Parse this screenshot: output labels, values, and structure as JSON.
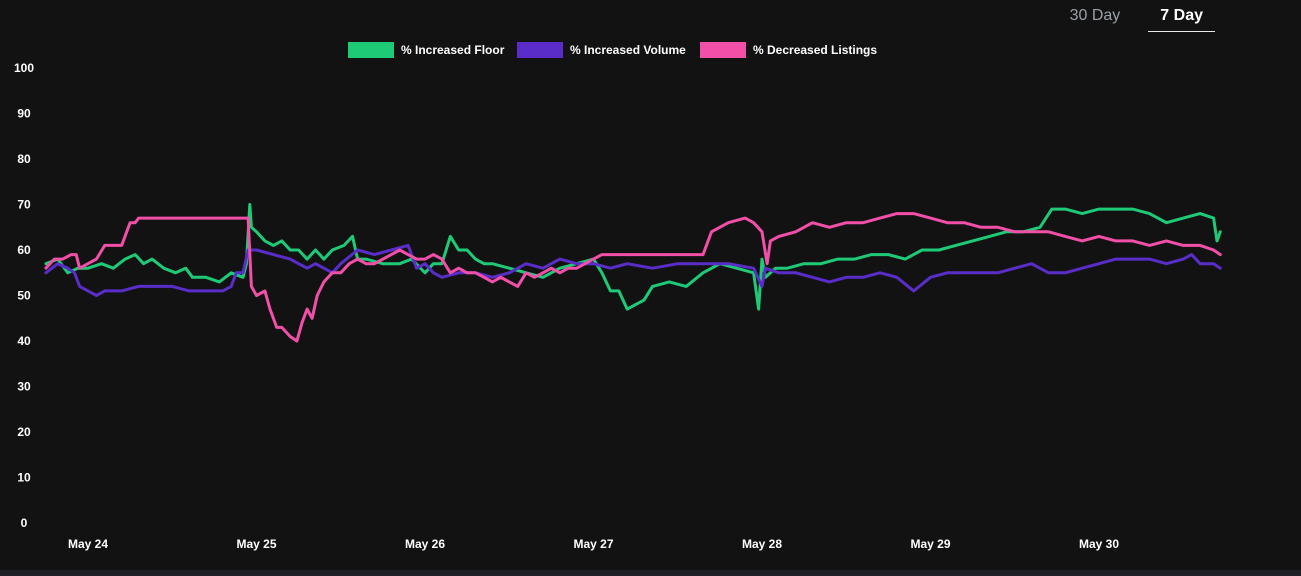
{
  "range_tabs": [
    {
      "label": "30 Day",
      "active": false
    },
    {
      "label": "7 Day",
      "active": true
    }
  ],
  "chart_data": {
    "type": "line",
    "title": "",
    "xlabel": "",
    "ylabel": "",
    "ylim": [
      0,
      100
    ],
    "yticks": [
      0,
      10,
      20,
      30,
      40,
      50,
      60,
      70,
      80,
      90,
      100
    ],
    "xlim": [
      0,
      6.75
    ],
    "xticks": [
      {
        "x": 0,
        "label": "May 24"
      },
      {
        "x": 1,
        "label": "May 25"
      },
      {
        "x": 2,
        "label": "May 26"
      },
      {
        "x": 3,
        "label": "May 27"
      },
      {
        "x": 4,
        "label": "May 28"
      },
      {
        "x": 5,
        "label": "May 29"
      },
      {
        "x": 6,
        "label": "May 30"
      }
    ],
    "grid": false,
    "legend_position": "top-center",
    "series": [
      {
        "name": "% Increased Floor",
        "color": "#1fca77",
        "points": [
          [
            -0.25,
            57
          ],
          [
            -0.18,
            58
          ],
          [
            -0.12,
            55
          ],
          [
            -0.06,
            56
          ],
          [
            0.0,
            56
          ],
          [
            0.08,
            57
          ],
          [
            0.15,
            56
          ],
          [
            0.22,
            58
          ],
          [
            0.28,
            59
          ],
          [
            0.33,
            57
          ],
          [
            0.38,
            58
          ],
          [
            0.45,
            56
          ],
          [
            0.52,
            55
          ],
          [
            0.58,
            56
          ],
          [
            0.62,
            54
          ],
          [
            0.7,
            54
          ],
          [
            0.78,
            53
          ],
          [
            0.85,
            55
          ],
          [
            0.92,
            54
          ],
          [
            0.94,
            57
          ],
          [
            0.96,
            70
          ],
          [
            0.97,
            65
          ],
          [
            1.0,
            64
          ],
          [
            1.05,
            62
          ],
          [
            1.1,
            61
          ],
          [
            1.15,
            62
          ],
          [
            1.2,
            60
          ],
          [
            1.25,
            60
          ],
          [
            1.3,
            58
          ],
          [
            1.35,
            60
          ],
          [
            1.4,
            58
          ],
          [
            1.45,
            60
          ],
          [
            1.52,
            61
          ],
          [
            1.57,
            63
          ],
          [
            1.6,
            58
          ],
          [
            1.65,
            58
          ],
          [
            1.75,
            57
          ],
          [
            1.85,
            57
          ],
          [
            1.92,
            58
          ],
          [
            2.0,
            55
          ],
          [
            2.05,
            57
          ],
          [
            2.1,
            57
          ],
          [
            2.15,
            63
          ],
          [
            2.2,
            60
          ],
          [
            2.25,
            60
          ],
          [
            2.3,
            58
          ],
          [
            2.35,
            57
          ],
          [
            2.4,
            57
          ],
          [
            2.5,
            56
          ],
          [
            2.6,
            55
          ],
          [
            2.7,
            54
          ],
          [
            2.8,
            56
          ],
          [
            2.9,
            57
          ],
          [
            3.0,
            58
          ],
          [
            3.05,
            55
          ],
          [
            3.1,
            51
          ],
          [
            3.15,
            51
          ],
          [
            3.2,
            47
          ],
          [
            3.3,
            49
          ],
          [
            3.35,
            52
          ],
          [
            3.45,
            53
          ],
          [
            3.55,
            52
          ],
          [
            3.65,
            55
          ],
          [
            3.75,
            57
          ],
          [
            3.85,
            56
          ],
          [
            3.95,
            55
          ],
          [
            3.98,
            47
          ],
          [
            4.0,
            58
          ],
          [
            4.02,
            54
          ],
          [
            4.08,
            56
          ],
          [
            4.15,
            56
          ],
          [
            4.25,
            57
          ],
          [
            4.35,
            57
          ],
          [
            4.45,
            58
          ],
          [
            4.55,
            58
          ],
          [
            4.65,
            59
          ],
          [
            4.75,
            59
          ],
          [
            4.85,
            58
          ],
          [
            4.95,
            60
          ],
          [
            5.05,
            60
          ],
          [
            5.15,
            61
          ],
          [
            5.25,
            62
          ],
          [
            5.35,
            63
          ],
          [
            5.45,
            64
          ],
          [
            5.55,
            64
          ],
          [
            5.65,
            65
          ],
          [
            5.72,
            69
          ],
          [
            5.8,
            69
          ],
          [
            5.9,
            68
          ],
          [
            6.0,
            69
          ],
          [
            6.1,
            69
          ],
          [
            6.2,
            69
          ],
          [
            6.3,
            68
          ],
          [
            6.4,
            66
          ],
          [
            6.5,
            67
          ],
          [
            6.6,
            68
          ],
          [
            6.68,
            67
          ],
          [
            6.7,
            62
          ],
          [
            6.72,
            64
          ]
        ]
      },
      {
        "name": "% Increased Volume",
        "color": "#5a2dc9",
        "points": [
          [
            -0.25,
            55
          ],
          [
            -0.18,
            57
          ],
          [
            -0.12,
            56
          ],
          [
            -0.08,
            55
          ],
          [
            -0.05,
            52
          ],
          [
            0.0,
            51
          ],
          [
            0.05,
            50
          ],
          [
            0.1,
            51
          ],
          [
            0.2,
            51
          ],
          [
            0.3,
            52
          ],
          [
            0.4,
            52
          ],
          [
            0.5,
            52
          ],
          [
            0.6,
            51
          ],
          [
            0.7,
            51
          ],
          [
            0.8,
            51
          ],
          [
            0.85,
            52
          ],
          [
            0.88,
            55
          ],
          [
            0.92,
            55
          ],
          [
            0.95,
            60
          ],
          [
            1.0,
            60
          ],
          [
            1.1,
            59
          ],
          [
            1.2,
            58
          ],
          [
            1.25,
            57
          ],
          [
            1.3,
            56
          ],
          [
            1.35,
            57
          ],
          [
            1.4,
            56
          ],
          [
            1.45,
            55
          ],
          [
            1.5,
            57
          ],
          [
            1.6,
            60
          ],
          [
            1.7,
            59
          ],
          [
            1.8,
            60
          ],
          [
            1.9,
            61
          ],
          [
            1.95,
            56
          ],
          [
            2.0,
            57
          ],
          [
            2.05,
            55
          ],
          [
            2.1,
            54
          ],
          [
            2.2,
            55
          ],
          [
            2.3,
            55
          ],
          [
            2.4,
            54
          ],
          [
            2.5,
            55
          ],
          [
            2.6,
            57
          ],
          [
            2.7,
            56
          ],
          [
            2.8,
            58
          ],
          [
            2.9,
            57
          ],
          [
            3.0,
            57
          ],
          [
            3.1,
            56
          ],
          [
            3.2,
            57
          ],
          [
            3.35,
            56
          ],
          [
            3.5,
            57
          ],
          [
            3.65,
            57
          ],
          [
            3.8,
            57
          ],
          [
            3.95,
            56
          ],
          [
            4.0,
            52
          ],
          [
            4.02,
            56
          ],
          [
            4.1,
            55
          ],
          [
            4.2,
            55
          ],
          [
            4.3,
            54
          ],
          [
            4.4,
            53
          ],
          [
            4.5,
            54
          ],
          [
            4.6,
            54
          ],
          [
            4.7,
            55
          ],
          [
            4.8,
            54
          ],
          [
            4.9,
            51
          ],
          [
            5.0,
            54
          ],
          [
            5.1,
            55
          ],
          [
            5.2,
            55
          ],
          [
            5.3,
            55
          ],
          [
            5.4,
            55
          ],
          [
            5.5,
            56
          ],
          [
            5.6,
            57
          ],
          [
            5.7,
            55
          ],
          [
            5.8,
            55
          ],
          [
            5.9,
            56
          ],
          [
            6.0,
            57
          ],
          [
            6.1,
            58
          ],
          [
            6.2,
            58
          ],
          [
            6.3,
            58
          ],
          [
            6.4,
            57
          ],
          [
            6.5,
            58
          ],
          [
            6.55,
            59
          ],
          [
            6.6,
            57
          ],
          [
            6.68,
            57
          ],
          [
            6.72,
            56
          ]
        ]
      },
      {
        "name": "% Decreased Listings",
        "color": "#f14fa8",
        "points": [
          [
            -0.25,
            56
          ],
          [
            -0.2,
            58
          ],
          [
            -0.15,
            58
          ],
          [
            -0.1,
            59
          ],
          [
            -0.07,
            59
          ],
          [
            -0.05,
            56
          ],
          [
            0.05,
            58
          ],
          [
            0.1,
            61
          ],
          [
            0.2,
            61
          ],
          [
            0.25,
            66
          ],
          [
            0.28,
            66
          ],
          [
            0.3,
            67
          ],
          [
            0.4,
            67
          ],
          [
            0.5,
            67
          ],
          [
            0.6,
            67
          ],
          [
            0.7,
            67
          ],
          [
            0.8,
            67
          ],
          [
            0.9,
            67
          ],
          [
            0.95,
            67
          ],
          [
            0.97,
            52
          ],
          [
            1.0,
            50
          ],
          [
            1.05,
            51
          ],
          [
            1.08,
            47
          ],
          [
            1.12,
            43
          ],
          [
            1.15,
            43
          ],
          [
            1.2,
            41
          ],
          [
            1.24,
            40
          ],
          [
            1.27,
            44
          ],
          [
            1.3,
            47
          ],
          [
            1.33,
            45
          ],
          [
            1.36,
            50
          ],
          [
            1.4,
            53
          ],
          [
            1.45,
            55
          ],
          [
            1.5,
            55
          ],
          [
            1.55,
            57
          ],
          [
            1.6,
            58
          ],
          [
            1.65,
            57
          ],
          [
            1.7,
            57
          ],
          [
            1.75,
            58
          ],
          [
            1.8,
            59
          ],
          [
            1.85,
            60
          ],
          [
            1.9,
            59
          ],
          [
            1.95,
            58
          ],
          [
            2.0,
            58
          ],
          [
            2.05,
            59
          ],
          [
            2.1,
            58
          ],
          [
            2.15,
            55
          ],
          [
            2.2,
            56
          ],
          [
            2.25,
            55
          ],
          [
            2.3,
            55
          ],
          [
            2.35,
            54
          ],
          [
            2.4,
            53
          ],
          [
            2.45,
            54
          ],
          [
            2.5,
            53
          ],
          [
            2.55,
            52
          ],
          [
            2.6,
            55
          ],
          [
            2.65,
            54
          ],
          [
            2.7,
            55
          ],
          [
            2.75,
            56
          ],
          [
            2.8,
            55
          ],
          [
            2.85,
            56
          ],
          [
            2.9,
            56
          ],
          [
            2.95,
            57
          ],
          [
            3.0,
            58
          ],
          [
            3.05,
            59
          ],
          [
            3.2,
            59
          ],
          [
            3.35,
            59
          ],
          [
            3.5,
            59
          ],
          [
            3.65,
            59
          ],
          [
            3.7,
            64
          ],
          [
            3.8,
            66
          ],
          [
            3.9,
            67
          ],
          [
            3.95,
            66
          ],
          [
            4.0,
            64
          ],
          [
            4.03,
            57
          ],
          [
            4.05,
            62
          ],
          [
            4.1,
            63
          ],
          [
            4.2,
            64
          ],
          [
            4.3,
            66
          ],
          [
            4.4,
            65
          ],
          [
            4.5,
            66
          ],
          [
            4.6,
            66
          ],
          [
            4.7,
            67
          ],
          [
            4.8,
            68
          ],
          [
            4.9,
            68
          ],
          [
            5.0,
            67
          ],
          [
            5.1,
            66
          ],
          [
            5.2,
            66
          ],
          [
            5.3,
            65
          ],
          [
            5.4,
            65
          ],
          [
            5.5,
            64
          ],
          [
            5.6,
            64
          ],
          [
            5.7,
            64
          ],
          [
            5.8,
            63
          ],
          [
            5.9,
            62
          ],
          [
            6.0,
            63
          ],
          [
            6.1,
            62
          ],
          [
            6.2,
            62
          ],
          [
            6.3,
            61
          ],
          [
            6.4,
            62
          ],
          [
            6.5,
            61
          ],
          [
            6.6,
            61
          ],
          [
            6.68,
            60
          ],
          [
            6.72,
            59
          ]
        ]
      }
    ]
  }
}
